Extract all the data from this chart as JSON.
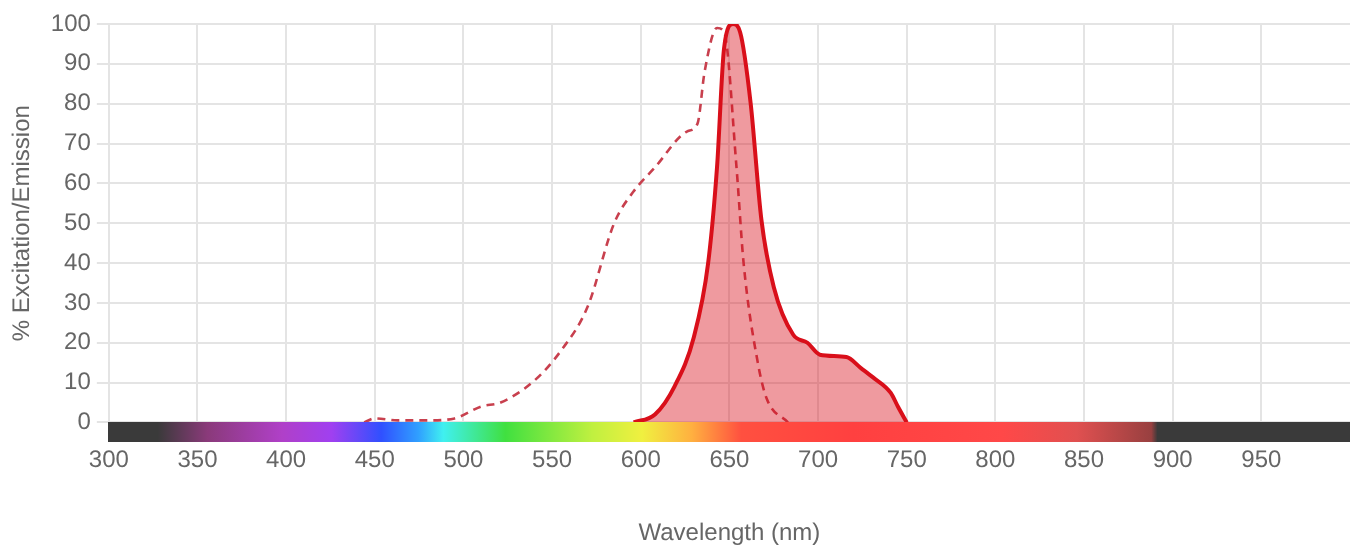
{
  "chart_data": {
    "type": "line",
    "xlabel": "Wavelength (nm)",
    "ylabel": "% Excitation/Emission",
    "xlim": [
      300,
      1000
    ],
    "xticks": [
      300,
      350,
      400,
      450,
      500,
      550,
      600,
      650,
      700,
      750,
      800,
      850,
      900,
      950
    ],
    "ylim": [
      0,
      100
    ],
    "yticks": [
      0,
      10,
      20,
      30,
      40,
      50,
      60,
      70,
      80,
      90,
      100
    ],
    "grid": true,
    "legend": false,
    "marker": "none",
    "series": [
      {
        "type": "line",
        "line_style": "dashed",
        "color": "#c8404e",
        "x": [
          444,
          450,
          463,
          480,
          495,
          510,
          521,
          540,
          555,
          570,
          585,
          596,
          608,
          626,
          632,
          636,
          643,
          647,
          654,
          658,
          666,
          671,
          683
        ],
        "values": [
          0,
          1,
          0.5,
          0.5,
          1,
          4,
          5,
          10.5,
          18,
          29,
          50,
          58,
          64,
          73,
          75,
          88,
          99,
          98,
          64,
          40,
          15,
          6,
          0
        ]
      },
      {
        "type": "area",
        "line_style": "solid",
        "color": "#d90f1a",
        "x": [
          596,
          608,
          619,
          630,
          638,
          643,
          647,
          652,
          656,
          662,
          668,
          675,
          686,
          694,
          701,
          716,
          724,
          731,
          741,
          745,
          750
        ],
        "values": [
          0,
          2,
          9,
          21.5,
          40,
          64,
          94,
          100,
          98,
          80,
          51,
          34,
          22,
          20,
          17,
          16.4,
          13.7,
          11.3,
          7.4,
          4,
          0
        ]
      }
    ]
  }
}
